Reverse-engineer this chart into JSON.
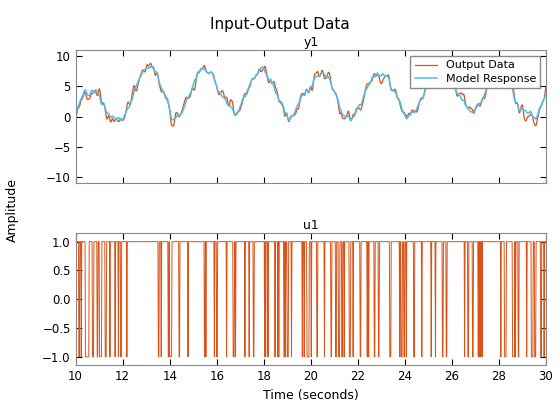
{
  "title": "Input-Output Data",
  "ax1_title": "y1",
  "ax2_title": "u1",
  "xlabel": "Time (seconds)",
  "ylabel": "Amplitude",
  "legend_labels": [
    "Model Response",
    "Output Data"
  ],
  "t_start": 10,
  "t_end": 30,
  "dt": 0.02,
  "ylim1": [
    -11,
    11
  ],
  "ylim2": [
    -1.15,
    1.15
  ],
  "yticks1": [
    -10,
    -5,
    0,
    5,
    10
  ],
  "yticks2": [
    -1,
    -0.5,
    0,
    0.5,
    1
  ],
  "xticks": [
    10,
    12,
    14,
    16,
    18,
    20,
    22,
    24,
    26,
    28,
    30
  ],
  "model_color": "#4DBEEE",
  "output_color": "#D95319",
  "u_color": "#D95319",
  "background_color": "#FFFFFF",
  "title_fontsize": 11,
  "label_fontsize": 9,
  "tick_fontsize": 8.5,
  "legend_fontsize": 8,
  "seed": 7,
  "u_switch_rate": 12.0,
  "u_on_bias": 0.75
}
